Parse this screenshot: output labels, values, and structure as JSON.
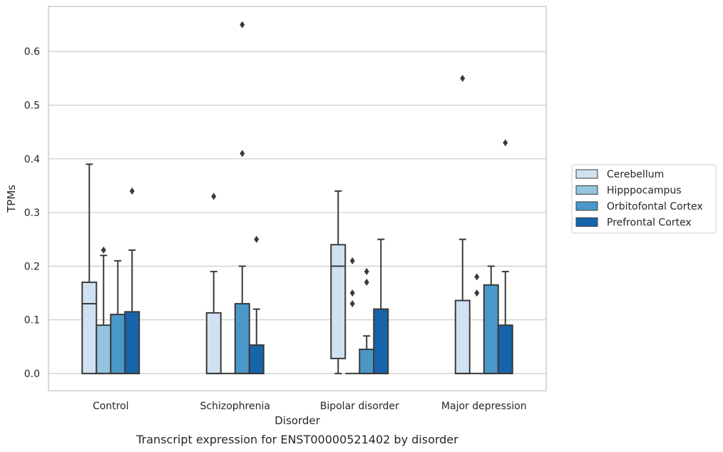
{
  "chart_data": {
    "type": "box",
    "xlabel": "Disorder",
    "ylabel": "TPMs",
    "caption": "Transcript expression for ENST00000521402 by disorder",
    "categories": [
      "Control",
      "Schizophrenia",
      "Bipolar disorder",
      "Major depression"
    ],
    "ylim": [
      -0.032,
      0.684
    ],
    "yticks": [
      "0.0",
      "0.1",
      "0.2",
      "0.3",
      "0.4",
      "0.5",
      "0.6"
    ],
    "grid": true,
    "legend_position": "right",
    "series": [
      {
        "name": "Cerebellum",
        "color": "#d0e1f2",
        "boxes": [
          {
            "q1": 0.0,
            "median": 0.13,
            "q3": 0.17,
            "whisker_low": 0.0,
            "whisker_high": 0.39,
            "outliers": []
          },
          {
            "q1": 0.0,
            "median": 0.0,
            "q3": 0.113,
            "whisker_low": 0.0,
            "whisker_high": 0.19,
            "outliers": [
              0.33
            ]
          },
          {
            "q1": 0.028,
            "median": 0.2,
            "q3": 0.24,
            "whisker_low": 0.0,
            "whisker_high": 0.34,
            "outliers": []
          },
          {
            "q1": 0.0,
            "median": 0.0,
            "q3": 0.136,
            "whisker_low": 0.0,
            "whisker_high": 0.25,
            "outliers": [
              0.55
            ]
          }
        ]
      },
      {
        "name": "Hipppocampus",
        "color": "#94c4df",
        "boxes": [
          {
            "q1": 0.0,
            "median": 0.0,
            "q3": 0.09,
            "whisker_low": 0.0,
            "whisker_high": 0.22,
            "outliers": [
              0.23
            ]
          },
          {
            "q1": 0.0,
            "median": 0.0,
            "q3": 0.0,
            "whisker_low": 0.0,
            "whisker_high": 0.0,
            "outliers": []
          },
          {
            "q1": 0.0,
            "median": 0.0,
            "q3": 0.0,
            "whisker_low": 0.0,
            "whisker_high": 0.0,
            "outliers": [
              0.13,
              0.15,
              0.21
            ]
          },
          {
            "q1": 0.0,
            "median": 0.0,
            "q3": 0.0,
            "whisker_low": 0.0,
            "whisker_high": 0.0,
            "outliers": [
              0.15,
              0.18
            ]
          }
        ]
      },
      {
        "name": "Orbitofontal Cortex",
        "color": "#4a98c9",
        "boxes": [
          {
            "q1": 0.0,
            "median": 0.0,
            "q3": 0.11,
            "whisker_low": 0.0,
            "whisker_high": 0.21,
            "outliers": []
          },
          {
            "q1": 0.0,
            "median": 0.0,
            "q3": 0.13,
            "whisker_low": 0.0,
            "whisker_high": 0.2,
            "outliers": [
              0.41,
              0.65
            ]
          },
          {
            "q1": 0.0,
            "median": 0.0,
            "q3": 0.045,
            "whisker_low": 0.0,
            "whisker_high": 0.07,
            "outliers": [
              0.17,
              0.19
            ]
          },
          {
            "q1": 0.0,
            "median": 0.0,
            "q3": 0.165,
            "whisker_low": 0.0,
            "whisker_high": 0.2,
            "outliers": []
          }
        ]
      },
      {
        "name": "Prefrontal Cortex",
        "color": "#1764ab",
        "boxes": [
          {
            "q1": 0.0,
            "median": 0.0,
            "q3": 0.115,
            "whisker_low": 0.0,
            "whisker_high": 0.23,
            "outliers": [
              0.34
            ]
          },
          {
            "q1": 0.0,
            "median": 0.0,
            "q3": 0.053,
            "whisker_low": 0.0,
            "whisker_high": 0.12,
            "outliers": [
              0.25
            ]
          },
          {
            "q1": 0.0,
            "median": 0.0,
            "q3": 0.12,
            "whisker_low": 0.0,
            "whisker_high": 0.25,
            "outliers": []
          },
          {
            "q1": 0.0,
            "median": 0.0,
            "q3": 0.09,
            "whisker_low": 0.0,
            "whisker_high": 0.19,
            "outliers": [
              0.43
            ]
          }
        ]
      }
    ]
  }
}
